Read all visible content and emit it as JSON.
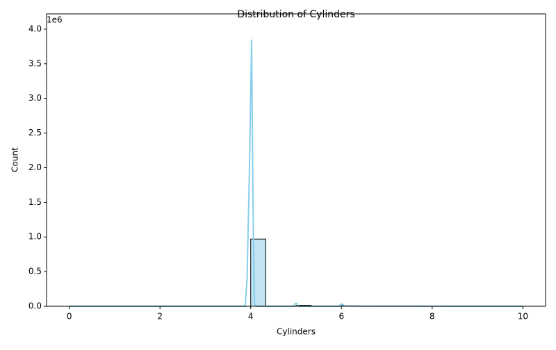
{
  "chart_data": {
    "type": "histogram",
    "title": "Distribution of Cylinders",
    "xlabel": "Cylinders",
    "ylabel": "Count",
    "bins": [
      0,
      0.3333,
      0.6667,
      1,
      1.3333,
      1.6667,
      2,
      2.3333,
      2.6667,
      3,
      3.3333,
      3.6667,
      4,
      4.3333,
      4.6667,
      5,
      5.3333,
      5.6667,
      6,
      6.3333,
      6.6667,
      7,
      7.3333,
      7.6667,
      8,
      8.3333,
      8.6667,
      9,
      9.3333,
      9.6667,
      10
    ],
    "values": [
      100,
      0,
      0,
      0,
      0,
      0,
      0,
      0,
      0,
      0,
      0,
      0,
      970000,
      0,
      0,
      15000,
      0,
      0,
      8000,
      0,
      0,
      0,
      0,
      0,
      500,
      0,
      0,
      0,
      0,
      200
    ],
    "color": "#c2e4f2",
    "edgecolor": "#000000",
    "kde": {
      "color": "#87ceeb",
      "x": [
        0,
        3.88,
        3.92,
        3.97,
        4.02,
        4.05,
        4.08,
        4.12,
        4.95,
        4.98,
        5.02,
        5.06,
        5.95,
        5.98,
        6.02,
        6.08,
        6.4,
        10
      ],
      "y": [
        0,
        0,
        400000,
        1900000,
        3850000,
        1500000,
        50000,
        0,
        0,
        40000,
        40000,
        0,
        0,
        30000,
        30000,
        5000,
        3000,
        0
      ]
    },
    "xlim": [
      -0.5,
      10.5
    ],
    "xticks": [
      0,
      2,
      4,
      6,
      8,
      10
    ],
    "ylim": [
      0,
      4220000
    ],
    "yticks": [
      {
        "value": 0,
        "label": "0.0"
      },
      {
        "value": 500000,
        "label": "0.5"
      },
      {
        "value": 1000000,
        "label": "1.0"
      },
      {
        "value": 1500000,
        "label": "1.5"
      },
      {
        "value": 2000000,
        "label": "2.0"
      },
      {
        "value": 2500000,
        "label": "2.5"
      },
      {
        "value": 3000000,
        "label": "3.0"
      },
      {
        "value": 3500000,
        "label": "3.5"
      },
      {
        "value": 4000000,
        "label": "4.0"
      }
    ],
    "y_offset_label": "1e6"
  }
}
